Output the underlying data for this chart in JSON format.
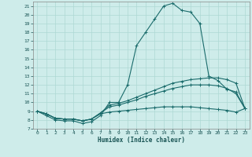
{
  "xlabel": "Humidex (Indice chaleur)",
  "ylabel": "",
  "bg_color": "#ceecea",
  "grid_color": "#aed8d4",
  "line_color": "#1a6b6b",
  "xlim": [
    -0.5,
    23.5
  ],
  "ylim": [
    7,
    21.5
  ],
  "xticks": [
    0,
    1,
    2,
    3,
    4,
    5,
    6,
    7,
    8,
    9,
    10,
    11,
    12,
    13,
    14,
    15,
    16,
    17,
    18,
    19,
    20,
    21,
    22,
    23
  ],
  "yticks": [
    7,
    8,
    9,
    10,
    11,
    12,
    13,
    14,
    15,
    16,
    17,
    18,
    19,
    20,
    21
  ],
  "line1_x": [
    0,
    1,
    2,
    3,
    4,
    5,
    6,
    7,
    8,
    9,
    10,
    11,
    12,
    13,
    14,
    15,
    16,
    17,
    18,
    19,
    20,
    21,
    22,
    23
  ],
  "line1_y": [
    9.0,
    8.5,
    8.0,
    7.9,
    7.9,
    7.6,
    7.8,
    8.5,
    10.0,
    10.0,
    12.0,
    16.5,
    18.0,
    19.5,
    21.0,
    21.3,
    20.5,
    20.3,
    19.0,
    13.0,
    12.5,
    11.5,
    11.2,
    9.3
  ],
  "line2_x": [
    0,
    1,
    2,
    3,
    4,
    5,
    6,
    7,
    8,
    9,
    10,
    11,
    12,
    13,
    14,
    15,
    16,
    17,
    18,
    19,
    20,
    21,
    22,
    23
  ],
  "line2_y": [
    9.0,
    8.7,
    8.2,
    8.1,
    8.1,
    7.9,
    8.1,
    8.8,
    9.7,
    9.9,
    10.2,
    10.6,
    11.0,
    11.4,
    11.8,
    12.2,
    12.4,
    12.6,
    12.7,
    12.8,
    12.8,
    12.6,
    12.2,
    9.3
  ],
  "line3_x": [
    0,
    1,
    2,
    3,
    4,
    5,
    6,
    7,
    8,
    9,
    10,
    11,
    12,
    13,
    14,
    15,
    16,
    17,
    18,
    19,
    20,
    21,
    22,
    23
  ],
  "line3_y": [
    9.0,
    8.7,
    8.2,
    8.1,
    8.1,
    7.9,
    8.1,
    8.8,
    9.5,
    9.7,
    10.0,
    10.3,
    10.7,
    11.0,
    11.3,
    11.6,
    11.8,
    12.0,
    12.0,
    12.0,
    11.9,
    11.6,
    11.0,
    9.3
  ],
  "line4_x": [
    0,
    1,
    2,
    3,
    4,
    5,
    6,
    7,
    8,
    9,
    10,
    11,
    12,
    13,
    14,
    15,
    16,
    17,
    18,
    19,
    20,
    21,
    22,
    23
  ],
  "line4_y": [
    9.0,
    8.7,
    8.2,
    8.1,
    8.1,
    7.9,
    8.1,
    8.7,
    8.9,
    9.0,
    9.1,
    9.2,
    9.3,
    9.4,
    9.5,
    9.5,
    9.5,
    9.5,
    9.4,
    9.3,
    9.2,
    9.1,
    8.9,
    9.3
  ]
}
